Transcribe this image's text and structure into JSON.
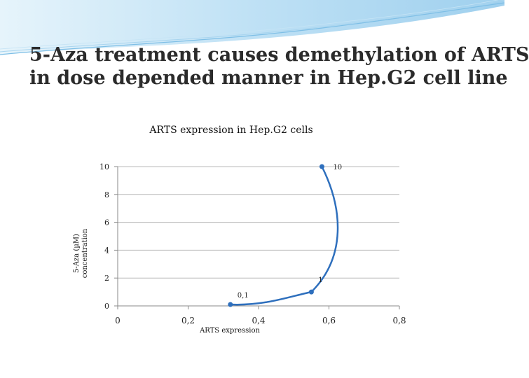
{
  "slide": {
    "title_lines": [
      "5-Aza treatment causes demethylation of ARTS",
      "in dose depended manner in Hep.G2 cell line"
    ]
  },
  "colors": {
    "series": "#2e6fbd",
    "banner_light": "#cfe8f7",
    "banner_mid": "#8cc6ea",
    "axis": "#8a8a8a"
  },
  "chart_data": {
    "type": "scatter",
    "title": "ARTS expression in Hep.G2 cells",
    "xlabel": "ARTS expression",
    "ylabel_lines": [
      "5-Aza (µM)",
      "concentration"
    ],
    "xlim": [
      0,
      0.8
    ],
    "ylim": [
      0,
      10
    ],
    "x_ticks": [
      "0",
      "0,2",
      "0,4",
      "0,6",
      "0,8"
    ],
    "y_ticks": [
      "0",
      "2",
      "4",
      "6",
      "8",
      "10"
    ],
    "grid": "horizontal",
    "smoothed": true,
    "points": [
      {
        "x": 0.32,
        "y": 0.1,
        "label": "0,1"
      },
      {
        "x": 0.55,
        "y": 1,
        "label": "1"
      },
      {
        "x": 0.58,
        "y": 10,
        "label": "10"
      }
    ]
  }
}
